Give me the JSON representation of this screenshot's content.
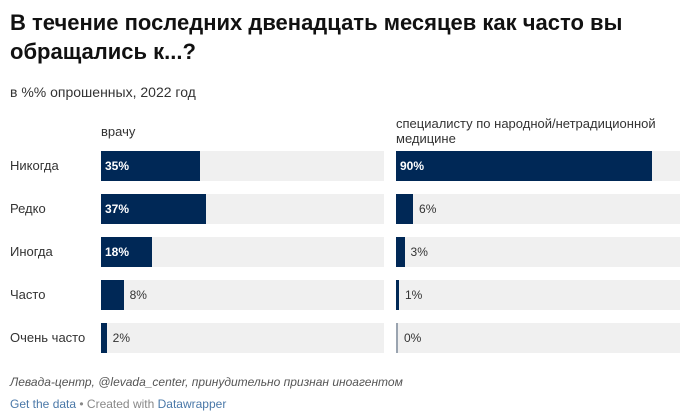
{
  "title": "В течение последних двенадцать месяцев как часто вы обращались к...?",
  "subtitle": "в %% опрошенных, 2022 год",
  "source": "Левада-центр, @levada_center, принудительно признан иноагентом",
  "footer": {
    "get_data": "Get the data",
    "separator": " • Created with ",
    "created_with": "Datawrapper"
  },
  "colors": {
    "bar": "#002856",
    "background_bar": "#f0f0f0"
  },
  "chart_data": {
    "type": "bar",
    "orientation": "horizontal",
    "categories": [
      "Никогда",
      "Редко",
      "Иногда",
      "Часто",
      "Очень часто"
    ],
    "value_suffix": "%",
    "xlim": [
      0,
      100
    ],
    "series": [
      {
        "name": "врачу",
        "values": [
          35,
          37,
          18,
          8,
          2
        ]
      },
      {
        "name": "специалисту по народной/нетрадиционной медицине",
        "values": [
          90,
          6,
          3,
          1,
          0
        ]
      }
    ]
  }
}
